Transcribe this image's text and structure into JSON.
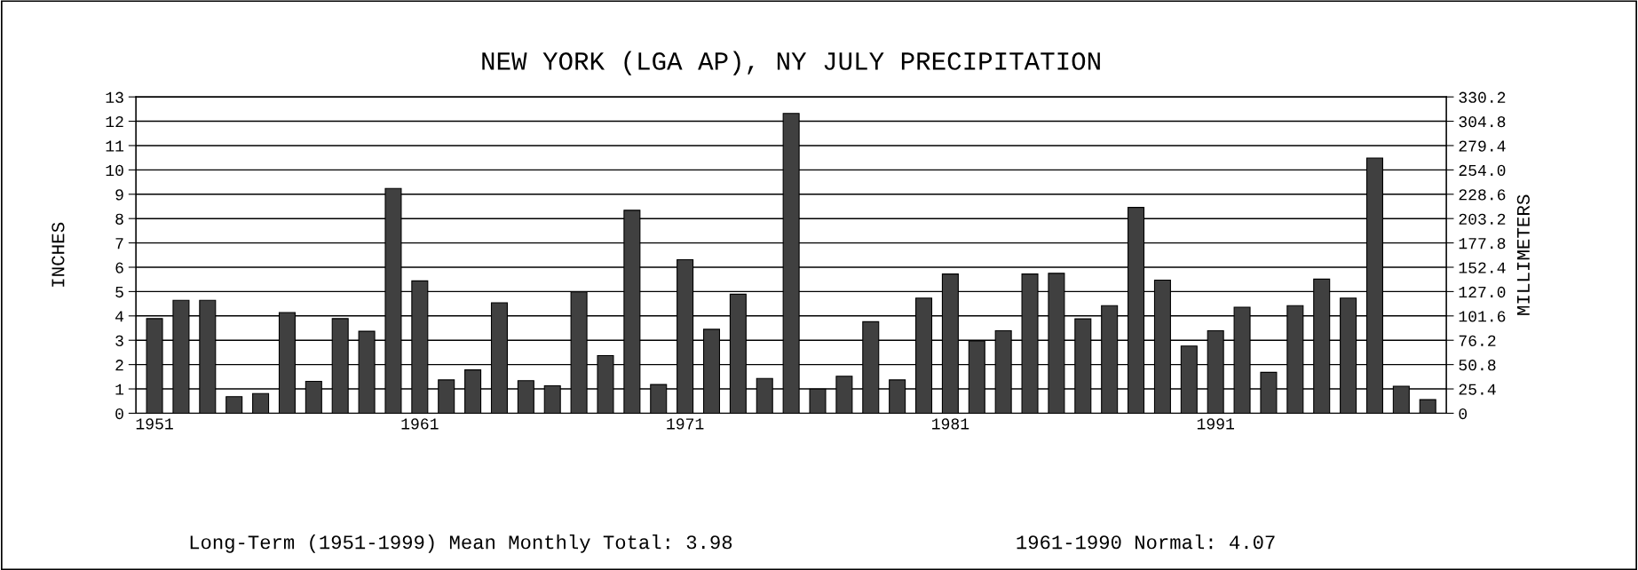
{
  "chart_data": {
    "type": "bar",
    "title": "NEW YORK (LGA AP), NY JULY PRECIPITATION",
    "ylabel": "INCHES",
    "y2label": "MILLIMETERS",
    "categories": [
      "1951",
      null,
      null,
      null,
      null,
      null,
      null,
      null,
      null,
      null,
      "1961",
      null,
      null,
      null,
      null,
      null,
      null,
      null,
      null,
      null,
      "1971",
      null,
      null,
      null,
      null,
      null,
      null,
      null,
      null,
      null,
      "1981",
      null,
      null,
      null,
      null,
      null,
      null,
      null,
      null,
      null,
      "1991",
      null,
      null,
      null,
      null,
      null,
      null,
      null,
      null
    ],
    "values": [
      3.89,
      4.64,
      4.64,
      0.68,
      0.81,
      4.14,
      1.31,
      3.89,
      3.37,
      9.24,
      5.44,
      1.37,
      1.78,
      4.54,
      1.34,
      1.13,
      4.99,
      2.37,
      8.34,
      1.18,
      6.31,
      3.45,
      4.89,
      1.43,
      12.32,
      0.99,
      1.52,
      3.76,
      1.37,
      4.73,
      5.72,
      2.97,
      3.39,
      5.72,
      5.75,
      3.88,
      4.42,
      8.46,
      5.47,
      2.76,
      3.39,
      4.36,
      1.68,
      4.42,
      5.51,
      4.73,
      10.49,
      1.11,
      0.56
    ],
    "color": "#404040",
    "ylim": [
      0,
      13
    ],
    "yticks": [
      0,
      1,
      2,
      3,
      4,
      5,
      6,
      7,
      8,
      9,
      10,
      11,
      12,
      13
    ],
    "y2lim": [
      0,
      330.2
    ],
    "y2ticks": [
      {
        "value": 0,
        "label": "0"
      },
      {
        "value": 25.4,
        "label": "25.4"
      },
      {
        "value": 50.8,
        "label": "50.8"
      },
      {
        "value": 76.2,
        "label": "76.2"
      },
      {
        "value": 101.6,
        "label": "101.6"
      },
      {
        "value": 127.0,
        "label": "127.0"
      },
      {
        "value": 152.4,
        "label": "152.4"
      },
      {
        "value": 177.8,
        "label": "177.8"
      },
      {
        "value": 203.2,
        "label": "203.2"
      },
      {
        "value": 228.6,
        "label": "228.6"
      },
      {
        "value": 254.0,
        "label": "254.0"
      },
      {
        "value": 279.4,
        "label": "279.4"
      },
      {
        "value": 304.8,
        "label": "304.8"
      },
      {
        "value": 330.2,
        "label": "330.2"
      }
    ],
    "grid": "y",
    "annotations": [
      "Long-Term (1951-1999) Mean Monthly Total: 3.98",
      "1961-1990 Normal: 4.07"
    ]
  }
}
